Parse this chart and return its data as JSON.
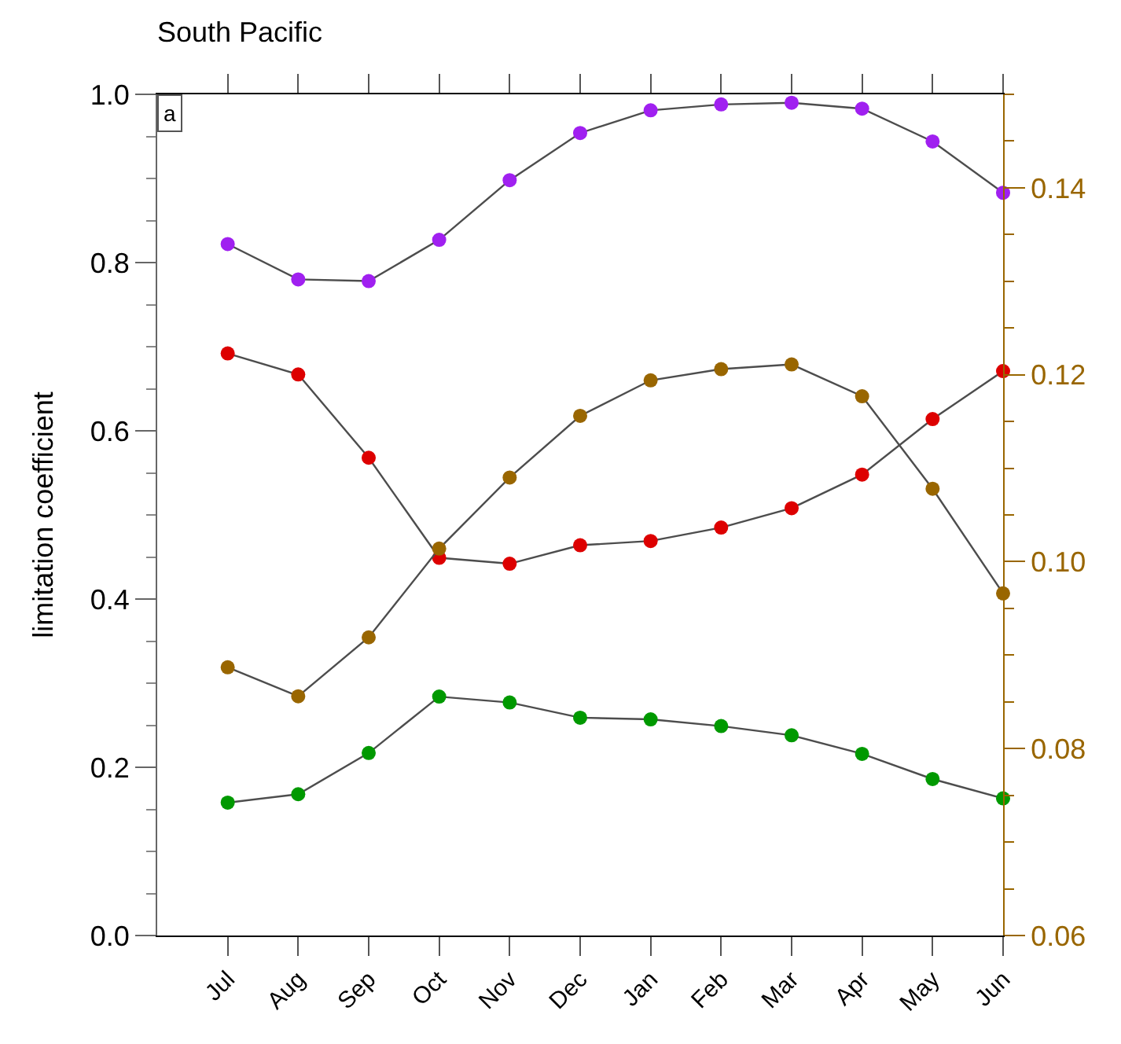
{
  "chart_data": {
    "type": "line",
    "title": "South Pacific",
    "ylabel": "limitation coefficient",
    "annotations": [
      "a"
    ],
    "categories": [
      "Jul",
      "Aug",
      "Sep",
      "Oct",
      "Nov",
      "Dec",
      "Jan",
      "Feb",
      "Mar",
      "Apr",
      "May",
      "Jun"
    ],
    "series": [
      {
        "color": "#a020f0",
        "values": [
          0.822,
          0.78,
          0.778,
          0.827,
          0.898,
          0.954,
          0.981,
          0.988,
          0.99,
          0.983,
          0.944,
          0.883
        ]
      },
      {
        "color": "#dd0000",
        "values": [
          0.692,
          0.667,
          0.568,
          0.449,
          0.442,
          0.464,
          0.469,
          0.485,
          0.508,
          0.548,
          0.614,
          0.671
        ]
      },
      {
        "color": "#009900",
        "values": [
          0.158,
          0.168,
          0.217,
          0.284,
          0.277,
          0.259,
          0.257,
          0.249,
          0.238,
          0.216,
          0.186,
          0.163
        ]
      },
      {
        "color": "#996600",
        "axis": "y2",
        "values": [
          0.0887,
          0.0856,
          0.0919,
          0.1014,
          0.109,
          0.1156,
          0.1194,
          0.1206,
          0.1211,
          0.1177,
          0.1078,
          0.0966
        ]
      }
    ],
    "ylim": [
      0,
      1
    ],
    "yticks": [
      {
        "value": 0,
        "label": "0.0"
      },
      {
        "value": 0.05,
        "label": null
      },
      {
        "value": 0.1,
        "label": null
      },
      {
        "value": 0.15,
        "label": null
      },
      0.2,
      {
        "value": 0.25,
        "label": null
      },
      {
        "value": 0.3,
        "label": null
      },
      {
        "value": 0.35,
        "label": null
      },
      0.4,
      {
        "value": 0.45,
        "label": null
      },
      {
        "value": 0.5,
        "label": null
      },
      {
        "value": 0.55,
        "label": null
      },
      0.6,
      {
        "value": 0.65,
        "label": null
      },
      {
        "value": 0.7,
        "label": null
      },
      {
        "value": 0.75,
        "label": null
      },
      0.8,
      {
        "value": 0.85,
        "label": null
      },
      {
        "value": 0.9,
        "label": null
      },
      {
        "value": 0.95,
        "label": null
      },
      {
        "value": 1,
        "label": "1.0"
      }
    ],
    "y2lim": [
      0.06,
      0.15
    ],
    "y2ticks": [
      0.06,
      {
        "value": 0.065,
        "label": null
      },
      {
        "value": 0.07,
        "label": null
      },
      {
        "value": 0.075,
        "label": null
      },
      0.08,
      {
        "value": 0.085,
        "label": null
      },
      {
        "value": 0.09,
        "label": null
      },
      {
        "value": 0.095,
        "label": null
      },
      {
        "value": 0.1,
        "label": "0.10"
      },
      {
        "value": 0.105,
        "label": null
      },
      {
        "value": 0.11,
        "label": null
      },
      {
        "value": 0.115,
        "label": null
      },
      0.12,
      {
        "value": 0.125,
        "label": null
      },
      {
        "value": 0.13,
        "label": null
      },
      {
        "value": 0.135,
        "label": null
      },
      0.14,
      {
        "value": 0.145,
        "label": null
      },
      {
        "value": 0.15,
        "label": null
      }
    ],
    "marker": "circle",
    "line_style": "solid"
  }
}
